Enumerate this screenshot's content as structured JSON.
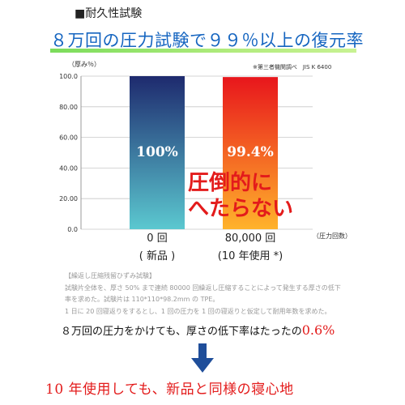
{
  "section_title": "■耐久性試験",
  "headline": "８万回の圧力試験で９９％以上の復元率",
  "source_note": "※第三者機関調べ　JIS K 6400",
  "colors": {
    "headline": "#1565c0",
    "headline_bar": "#7bdc5b",
    "bar_new": [
      "#1e2a6e",
      "#5bc8d0"
    ],
    "bar_used": [
      "#e8161c",
      "#ffb32b"
    ],
    "accent_red": "#e31b1b",
    "arrow": "#1f4e9a"
  },
  "chart_data": {
    "type": "bar",
    "ylabel": "（厚み％）",
    "xlabel": "（圧力回数）",
    "ylim": [
      0,
      100
    ],
    "yticks": [
      "0.0",
      "20.00",
      "40.00",
      "60.00",
      "80.00",
      "100.0"
    ],
    "categories": [
      {
        "line1": "0 回",
        "line2": "( 新品 )"
      },
      {
        "line1": "80,000 回",
        "line2": "(10 年使用 *)"
      }
    ],
    "values": [
      100,
      99.4
    ],
    "value_labels": [
      "100%",
      "99.4%"
    ],
    "grid": true
  },
  "callout": {
    "line1": "圧倒的に",
    "line2": "へたらない"
  },
  "method": {
    "heading": "【繰返し圧縮残留ひずみ試験】",
    "line1": "試験片全体を、厚さ 50% まで連続 80000 回繰返し圧縮することによって発生する厚さの低下",
    "line2": "率を求めた。試験片は 110*110*98.2mm の TPE。",
    "line3": "1 日に 20 回寝返りをするとし、1 回の圧力を 1 回の寝返りと仮定して耐用年数を求めた。"
  },
  "summary": {
    "text": "８万回の圧力をかけても、厚さの低下率はたったの",
    "highlight": "0.6%"
  },
  "conclusion": "10 年使用しても、新品と同様の寝心地",
  "icons": {
    "arrow": "down-arrow-icon"
  }
}
